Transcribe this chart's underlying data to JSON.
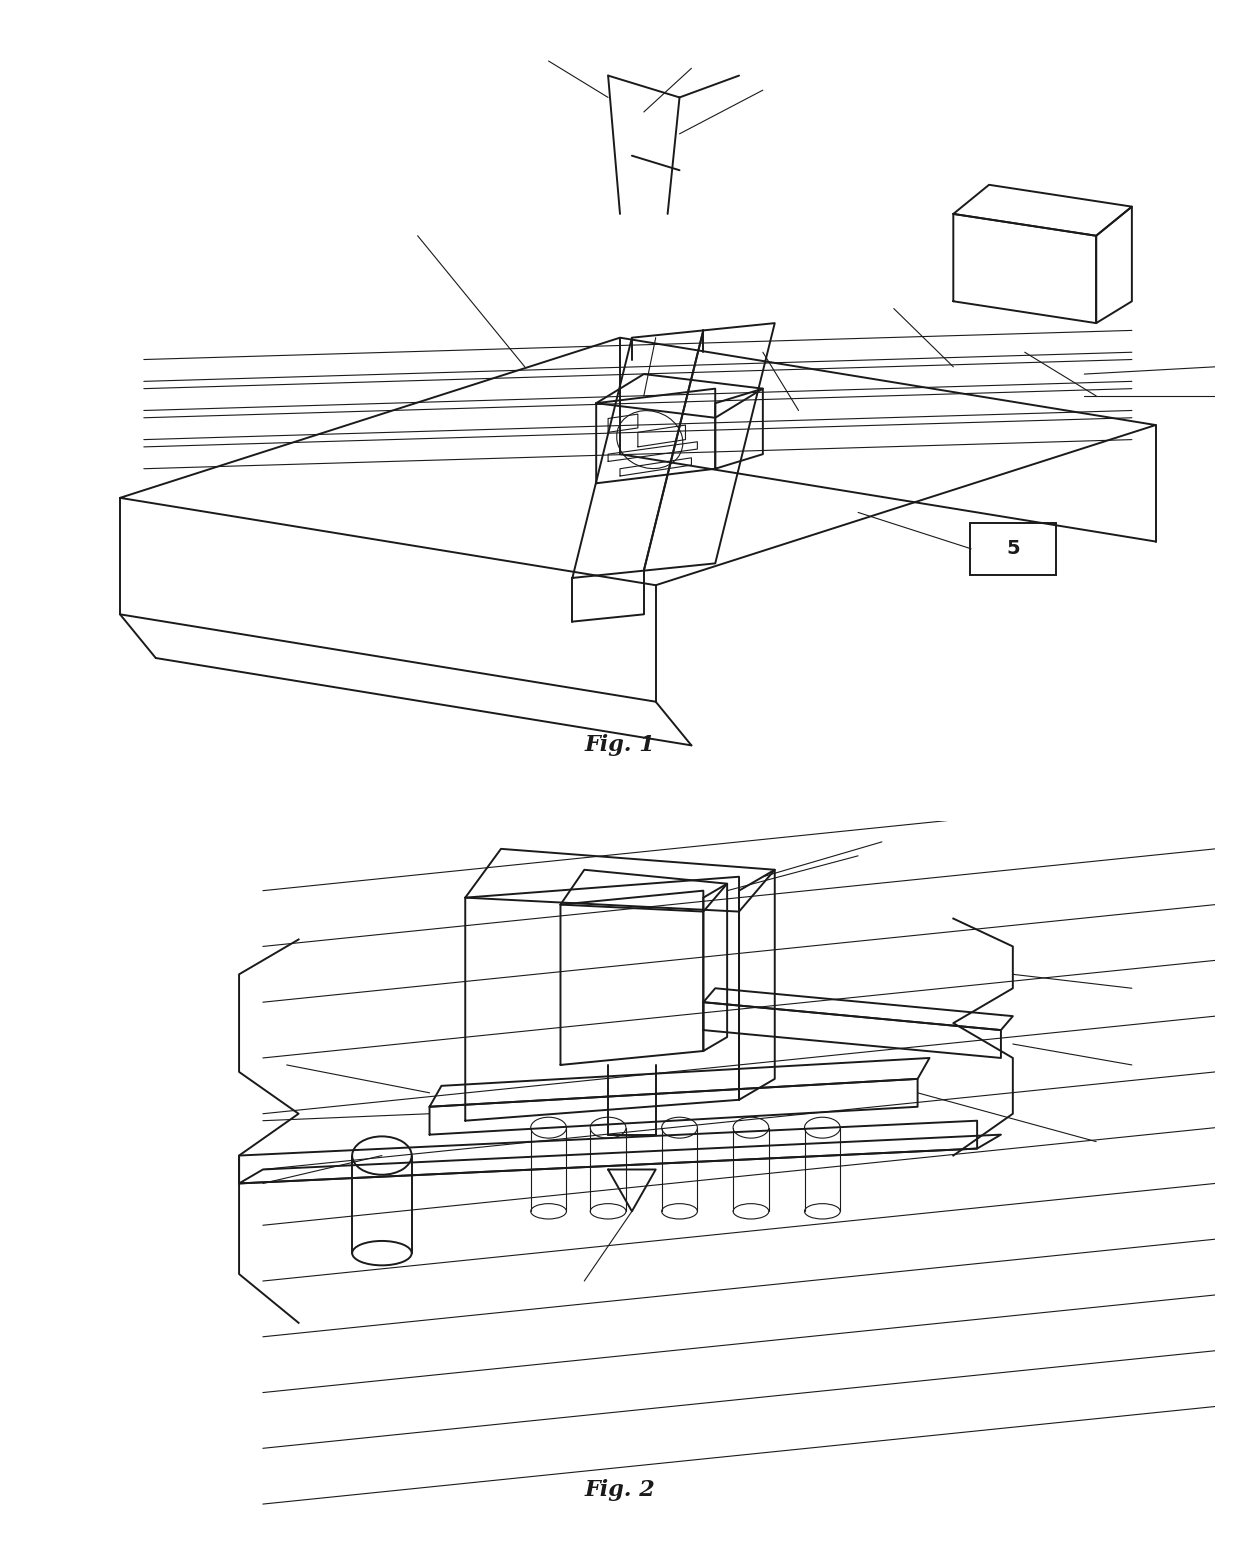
{
  "fig1_caption": "Fig. 1",
  "fig2_caption": "Fig. 2",
  "label_5": "5",
  "background_color": "#ffffff",
  "line_color": "#1a1a1a",
  "line_width": 1.4,
  "thin_lw": 0.8,
  "fig_width": 12.4,
  "fig_height": 15.49,
  "dpi": 100
}
